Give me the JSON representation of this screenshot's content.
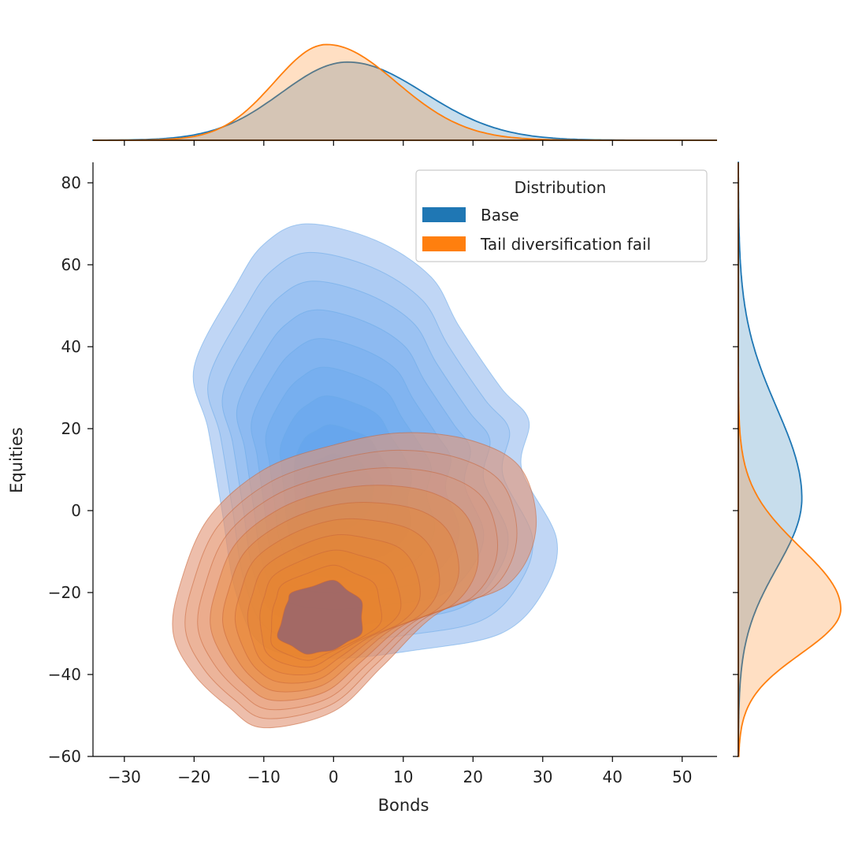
{
  "chart_data": {
    "type": "kde-jointplot",
    "xlabel": "Bonds",
    "ylabel": "Equities",
    "xlim": [
      -34.5,
      55
    ],
    "ylim": [
      -60,
      85
    ],
    "x_ticks": [
      -30,
      -20,
      -10,
      0,
      10,
      20,
      30,
      40,
      50
    ],
    "x_tick_labels": [
      "−30",
      "−20",
      "−10",
      "0",
      "10",
      "20",
      "30",
      "40",
      "50"
    ],
    "y_ticks": [
      -60,
      -40,
      -20,
      0,
      20,
      40,
      60,
      80
    ],
    "y_tick_labels": [
      "−60",
      "−40",
      "−20",
      "0",
      "20",
      "40",
      "60",
      "80"
    ],
    "legend": {
      "title": "Distribution",
      "placement": "top-right"
    },
    "series": [
      {
        "name": "Base",
        "color": "#1f77b4",
        "fill_color": "#4a90e2",
        "center": [
          1,
          12
        ],
        "outer_region": {
          "x_range": [
            -20,
            32
          ],
          "y_range": [
            -36,
            70
          ]
        },
        "inner_region": {
          "x_range": [
            -4,
            6
          ],
          "y_range": [
            -5,
            14
          ]
        },
        "x_marginal_peak": 2,
        "y_marginal_peak": 3
      },
      {
        "name": "Tail diversification fail",
        "color": "#ff7f0e",
        "fill_color": "#e8956e",
        "center": [
          -2,
          -25
        ],
        "outer_region": {
          "x_range": [
            -23,
            29
          ],
          "y_range": [
            -53,
            19
          ]
        },
        "inner_region": {
          "x_range": [
            -8,
            4
          ],
          "y_range": [
            -35,
            -17
          ]
        },
        "x_marginal_peak": -1,
        "y_marginal_peak": -24
      }
    ],
    "grid": false
  }
}
